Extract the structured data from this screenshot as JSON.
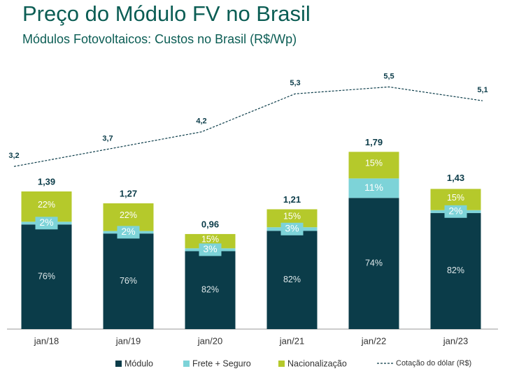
{
  "chart_data": {
    "type": "bar",
    "stacked": true,
    "title": "Preço do Módulo FV no Brasil",
    "subtitle": "Módulos Fotovoltaicos: Custos no Brasil (R$/Wp)",
    "categories": [
      "jan/18",
      "jan/19",
      "jan/20",
      "jan/21",
      "jan/22",
      "jan/23"
    ],
    "totals": {
      "values": [
        1.39,
        1.27,
        0.96,
        1.21,
        1.79,
        1.43
      ],
      "value_labels": [
        "1,39",
        "1,27",
        "0,96",
        "1,21",
        "1,79",
        "1,43"
      ]
    },
    "series": [
      {
        "name": "Módulo",
        "color": "#0b3c49",
        "values": [
          76,
          76,
          82,
          82,
          74,
          82
        ],
        "value_labels": [
          "76%",
          "76%",
          "82%",
          "82%",
          "74%",
          "82%"
        ]
      },
      {
        "name": "Frete + Seguro",
        "color": "#7dd3d8",
        "values": [
          2,
          2,
          3,
          3,
          11,
          2
        ],
        "value_labels": [
          "2%",
          "2%",
          "3%",
          "3%",
          "11%",
          "2%"
        ]
      },
      {
        "name": "Nacionalização",
        "color": "#b5c92b",
        "values": [
          22,
          22,
          15,
          15,
          15,
          15
        ],
        "value_labels": [
          "22%",
          "22%",
          "15%",
          "15%",
          "15%",
          "15%"
        ]
      }
    ],
    "line": {
      "name": "Cotação do dólar (R$)",
      "type": "line",
      "axis": "y2",
      "color": "#0b3c49",
      "dashed": true,
      "values": [
        3.2,
        3.7,
        4.2,
        5.3,
        5.5,
        5.1
      ],
      "value_labels": [
        "3,2",
        "3,7",
        "4,2",
        "5,3",
        "5,5",
        "5,1"
      ]
    },
    "ylim": [
      0,
      2.9
    ],
    "y2lim": [
      -1.5,
      6.8
    ]
  }
}
